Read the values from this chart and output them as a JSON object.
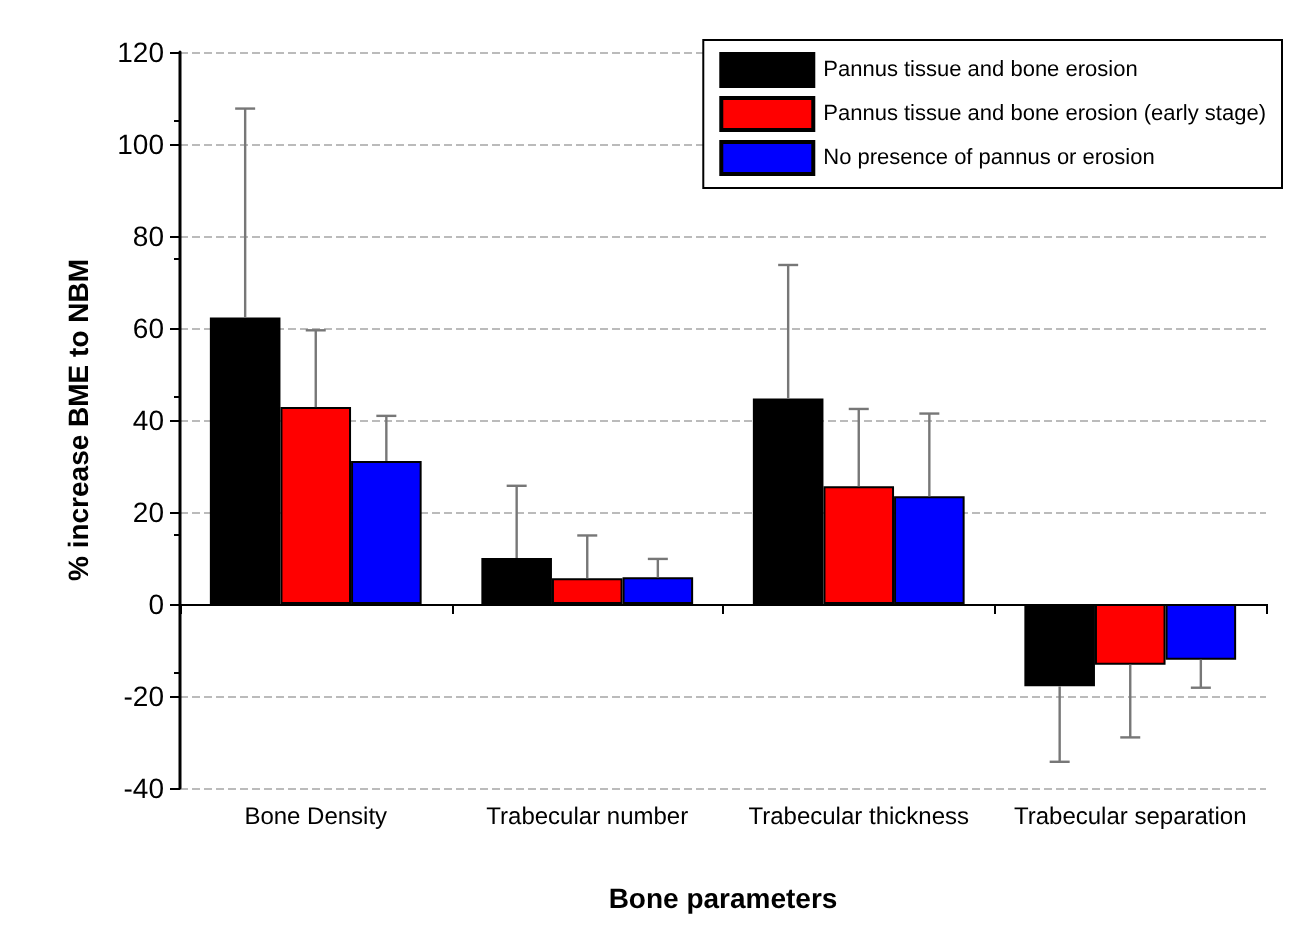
{
  "chart_data": {
    "type": "bar",
    "xlabel": "Bone parameters",
    "ylabel": "% increase BME to NBM",
    "categories": [
      "Bone Density",
      "Trabecular number",
      "Trabecular thickness",
      "Trabecular separation"
    ],
    "series": [
      {
        "name": "Pannus tissue and bone erosion",
        "color": "#000000",
        "values": [
          62.3,
          10.0,
          44.7,
          -17.9
        ],
        "errors": [
          [
            62.3,
            107.7
          ],
          [
            10.0,
            25.7
          ],
          [
            44.7,
            73.7
          ],
          [
            -34.3,
            -17.9
          ]
        ]
      },
      {
        "name": "Pannus tissue and bone erosion (early stage)",
        "color": "#ff0000",
        "values": [
          42.8,
          5.6,
          25.6,
          -13.2
        ],
        "errors": [
          [
            42.8,
            59.5
          ],
          [
            5.6,
            14.9
          ],
          [
            25.6,
            42.4
          ],
          [
            -29,
            -13.2
          ]
        ]
      },
      {
        "name": "No presence of pannus or erosion",
        "color": "#0000ff",
        "values": [
          31.1,
          5.8,
          23.4,
          -12.1
        ],
        "errors": [
          [
            31.1,
            40.9
          ],
          [
            5.8,
            9.8
          ],
          [
            23.4,
            41.4
          ],
          [
            -18.2,
            -12.1
          ]
        ]
      }
    ],
    "ylim": [
      -40,
      120
    ],
    "yticks": [
      -40,
      -20,
      0,
      20,
      40,
      60,
      80,
      100,
      120
    ],
    "grid": "y",
    "legend": "top right"
  }
}
